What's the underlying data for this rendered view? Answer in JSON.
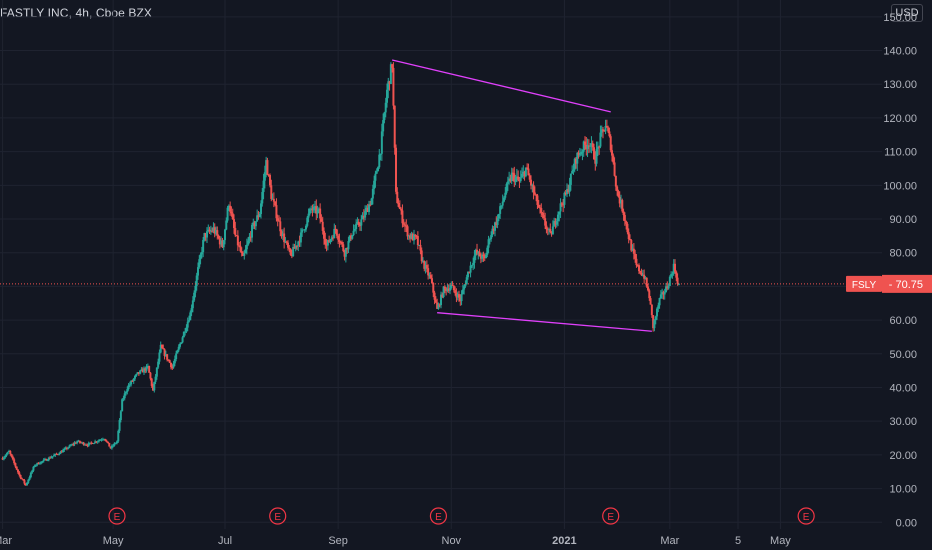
{
  "header": {
    "symbol_line": "FASTLY INC, 4h, Cboe BZX",
    "currency": "USD"
  },
  "price_label": {
    "ticker": "FSLY",
    "value": "70.75"
  },
  "colors": {
    "background": "#131722",
    "up": "#26a69a",
    "down": "#ef5350",
    "trendline": "#e040fb",
    "earnings_marker": "#f23645",
    "grid": "#1f2330"
  },
  "earnings_marker_label": "E",
  "chart_data": {
    "type": "candlestick",
    "timeframe": "4h",
    "y_axis": {
      "ylim": [
        -2,
        155
      ],
      "ticks": [
        0,
        10,
        20,
        30,
        40,
        50,
        60,
        70,
        80,
        90,
        100,
        110,
        120,
        130,
        140,
        150
      ],
      "tick_labels": [
        "0.00",
        "10.00",
        "20.00",
        "30.00",
        "40.00",
        "50.00",
        "60.00",
        "70.00",
        "80.00",
        "90.00",
        "100.00",
        "110.00",
        "120.00",
        "130.00",
        "140.00",
        "150.00"
      ]
    },
    "x_axis": {
      "ticks": [
        {
          "label": "Mar",
          "t": 0
        },
        {
          "label": "May",
          "t": 8.6
        },
        {
          "label": "Jul",
          "t": 17.3
        },
        {
          "label": "Sep",
          "t": 26.1
        },
        {
          "label": "Nov",
          "t": 34.9
        },
        {
          "label": "2021",
          "t": 43.7,
          "bold": true
        },
        {
          "label": "Mar",
          "t": 51.9
        },
        {
          "label": "5",
          "t": 57.2
        },
        {
          "label": "May",
          "t": 60.5
        }
      ],
      "range": [
        -0.2,
        68.4
      ]
    },
    "price_path": [
      [
        0,
        19
      ],
      [
        0.5,
        21
      ],
      [
        1.3,
        14
      ],
      [
        1.8,
        11
      ],
      [
        2.5,
        17
      ],
      [
        3.6,
        19
      ],
      [
        4.6,
        21
      ],
      [
        5.8,
        24
      ],
      [
        6.6,
        23
      ],
      [
        7.9,
        25
      ],
      [
        8.4,
        22
      ],
      [
        8.9,
        24
      ],
      [
        9.3,
        36
      ],
      [
        9.7,
        40
      ],
      [
        10.5,
        44
      ],
      [
        11.3,
        46
      ],
      [
        11.7,
        39
      ],
      [
        12.3,
        52
      ],
      [
        13.2,
        46
      ],
      [
        13.9,
        54
      ],
      [
        14.6,
        62
      ],
      [
        15.2,
        75
      ],
      [
        15.7,
        85
      ],
      [
        16.4,
        87
      ],
      [
        17.1,
        82
      ],
      [
        17.6,
        95
      ],
      [
        18.1,
        85
      ],
      [
        18.7,
        78
      ],
      [
        19.4,
        87
      ],
      [
        20.0,
        92
      ],
      [
        20.5,
        107
      ],
      [
        20.9,
        97
      ],
      [
        21.7,
        86
      ],
      [
        22.4,
        79
      ],
      [
        23.2,
        85
      ],
      [
        24.0,
        93
      ],
      [
        24.6,
        92
      ],
      [
        25.2,
        82
      ],
      [
        25.9,
        87
      ],
      [
        26.6,
        80
      ],
      [
        27.2,
        86
      ],
      [
        28.0,
        90
      ],
      [
        28.7,
        96
      ],
      [
        29.4,
        111
      ],
      [
        29.9,
        128
      ],
      [
        30.3,
        136
      ],
      [
        30.6,
        97
      ],
      [
        31.1,
        90
      ],
      [
        31.6,
        85
      ],
      [
        32.2,
        84
      ],
      [
        32.7,
        77
      ],
      [
        33.3,
        72
      ],
      [
        33.8,
        63
      ],
      [
        34.3,
        69
      ],
      [
        34.9,
        70
      ],
      [
        35.6,
        66
      ],
      [
        36.2,
        74
      ],
      [
        36.8,
        80
      ],
      [
        37.5,
        78
      ],
      [
        37.9,
        85
      ],
      [
        38.5,
        90
      ],
      [
        39.1,
        98
      ],
      [
        39.6,
        103
      ],
      [
        40.2,
        101
      ],
      [
        40.7,
        105
      ],
      [
        41.3,
        98
      ],
      [
        41.9,
        91
      ],
      [
        42.6,
        85
      ],
      [
        43.3,
        93
      ],
      [
        43.9,
        98
      ],
      [
        44.6,
        108
      ],
      [
        45.1,
        111
      ],
      [
        45.6,
        113
      ],
      [
        46.1,
        108
      ],
      [
        46.5,
        114
      ],
      [
        46.9,
        118
      ],
      [
        47.3,
        112
      ],
      [
        47.8,
        98
      ],
      [
        48.3,
        92
      ],
      [
        48.8,
        83
      ],
      [
        49.3,
        76
      ],
      [
        49.9,
        73
      ],
      [
        50.3,
        67
      ],
      [
        50.6,
        58
      ],
      [
        51.1,
        66
      ],
      [
        51.7,
        70
      ],
      [
        52.2,
        76
      ],
      [
        52.6,
        71
      ]
    ],
    "last_close": 70.75,
    "trendlines": [
      {
        "from": {
          "t": 30.3,
          "price": 137.2
        },
        "to": {
          "t": 47.3,
          "price": 121.8
        }
      },
      {
        "from": {
          "t": 33.8,
          "price": 62.2
        },
        "to": {
          "t": 50.5,
          "price": 56.7
        }
      }
    ],
    "earnings_events_t": [
      8.9,
      21.4,
      33.9,
      47.3,
      62.5
    ]
  }
}
